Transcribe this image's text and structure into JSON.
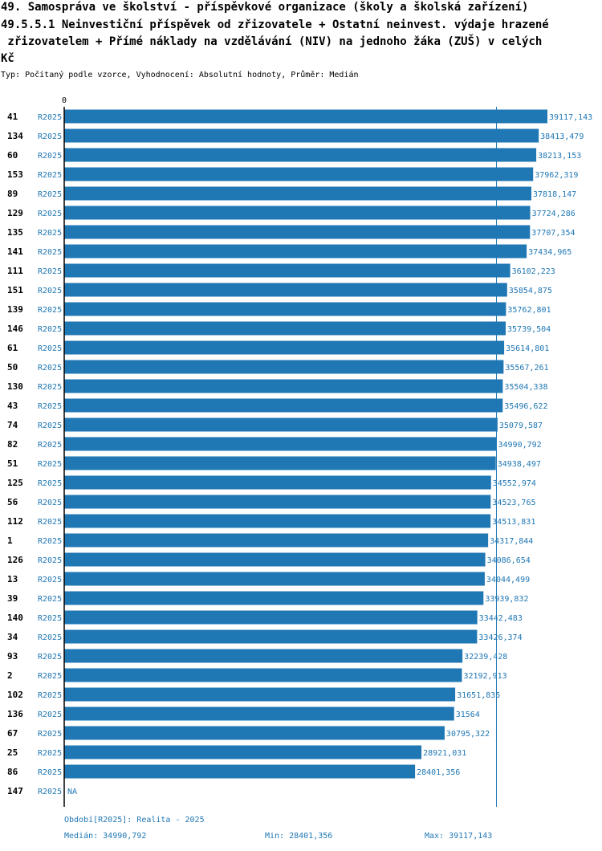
{
  "title_lines": [
    "49. Samospráva ve školství - příspěvkové organizace (školy a školská zařízení)",
    "49.5.5.1 Neinvestiční příspěvek od zřizovatele + Ostatní neinvest. výdaje hrazené",
    " zřizovatelem + Přímé náklady na vzdělávání (NIV) na jednoho žáka (ZUŠ) v celých",
    "Kč"
  ],
  "subtitle": "Typ: Počítaný podle vzorce, Vyhodnocení: Absolutní hodnoty, Průměr: Medián",
  "colors": {
    "bar": "#1f77b4",
    "label": "#1f77b4",
    "axis": "#000000",
    "median_line": "#1f77b4"
  },
  "chart_data": {
    "type": "bar",
    "orientation": "horizontal",
    "axis_zero_label": "0",
    "xlim": [
      0,
      39117.143
    ],
    "median": 34990.792,
    "rows": [
      {
        "id": "41",
        "period": "R2025",
        "value": 39117.143,
        "label": "39117,143"
      },
      {
        "id": "134",
        "period": "R2025",
        "value": 38413.479,
        "label": "38413,479"
      },
      {
        "id": "60",
        "period": "R2025",
        "value": 38213.153,
        "label": "38213,153"
      },
      {
        "id": "153",
        "period": "R2025",
        "value": 37962.319,
        "label": "37962,319"
      },
      {
        "id": "89",
        "period": "R2025",
        "value": 37818.147,
        "label": "37818,147"
      },
      {
        "id": "129",
        "period": "R2025",
        "value": 37724.286,
        "label": "37724,286"
      },
      {
        "id": "135",
        "period": "R2025",
        "value": 37707.354,
        "label": "37707,354"
      },
      {
        "id": "141",
        "period": "R2025",
        "value": 37434.965,
        "label": "37434,965"
      },
      {
        "id": "111",
        "period": "R2025",
        "value": 36102.223,
        "label": "36102,223"
      },
      {
        "id": "151",
        "period": "R2025",
        "value": 35854.875,
        "label": "35854,875"
      },
      {
        "id": "139",
        "period": "R2025",
        "value": 35762.801,
        "label": "35762,801"
      },
      {
        "id": "146",
        "period": "R2025",
        "value": 35739.504,
        "label": "35739,504"
      },
      {
        "id": "61",
        "period": "R2025",
        "value": 35614.801,
        "label": "35614,801"
      },
      {
        "id": "50",
        "period": "R2025",
        "value": 35567.261,
        "label": "35567,261"
      },
      {
        "id": "130",
        "period": "R2025",
        "value": 35504.338,
        "label": "35504,338"
      },
      {
        "id": "43",
        "period": "R2025",
        "value": 35496.622,
        "label": "35496,622"
      },
      {
        "id": "74",
        "period": "R2025",
        "value": 35079.587,
        "label": "35079,587"
      },
      {
        "id": "82",
        "period": "R2025",
        "value": 34990.792,
        "label": "34990,792"
      },
      {
        "id": "51",
        "period": "R2025",
        "value": 34938.497,
        "label": "34938,497"
      },
      {
        "id": "125",
        "period": "R2025",
        "value": 34552.974,
        "label": "34552,974"
      },
      {
        "id": "56",
        "period": "R2025",
        "value": 34523.765,
        "label": "34523,765"
      },
      {
        "id": "112",
        "period": "R2025",
        "value": 34513.831,
        "label": "34513,831"
      },
      {
        "id": "1",
        "period": "R2025",
        "value": 34317.844,
        "label": "34317,844"
      },
      {
        "id": "126",
        "period": "R2025",
        "value": 34086.654,
        "label": "34086,654"
      },
      {
        "id": "13",
        "period": "R2025",
        "value": 34044.499,
        "label": "34044,499"
      },
      {
        "id": "39",
        "period": "R2025",
        "value": 33939.832,
        "label": "33939,832"
      },
      {
        "id": "140",
        "period": "R2025",
        "value": 33442.483,
        "label": "33442,483"
      },
      {
        "id": "34",
        "period": "R2025",
        "value": 33426.374,
        "label": "33426,374"
      },
      {
        "id": "93",
        "period": "R2025",
        "value": 32239.428,
        "label": "32239,428"
      },
      {
        "id": "2",
        "period": "R2025",
        "value": 32192.913,
        "label": "32192,913"
      },
      {
        "id": "102",
        "period": "R2025",
        "value": 31651.835,
        "label": "31651,835"
      },
      {
        "id": "136",
        "period": "R2025",
        "value": 31564,
        "label": "31564"
      },
      {
        "id": "67",
        "period": "R2025",
        "value": 30795.322,
        "label": "30795,322"
      },
      {
        "id": "25",
        "period": "R2025",
        "value": 28921.031,
        "label": "28921,031"
      },
      {
        "id": "86",
        "period": "R2025",
        "value": 28401.356,
        "label": "28401,356"
      },
      {
        "id": "147",
        "period": "R2025",
        "value": null,
        "label": "NA"
      }
    ]
  },
  "footer": {
    "period_note": "Období[R2025]: Realita - 2025",
    "median_text": "Medián: 34990,792",
    "min_text": "Min: 28401,356",
    "max_text": "Max: 39117,143"
  }
}
